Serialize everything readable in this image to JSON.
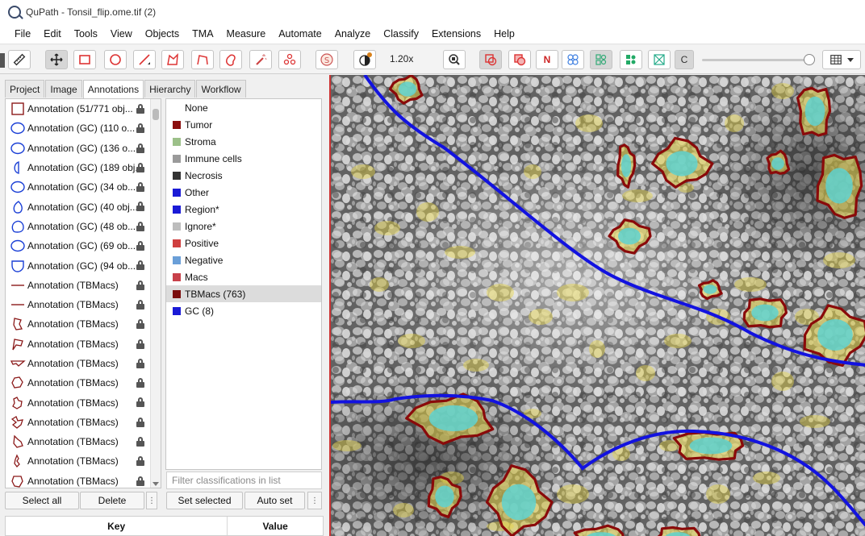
{
  "window": {
    "title": "QuPath - Tonsil_flip.ome.tif (2)"
  },
  "menu": [
    "File",
    "Edit",
    "Tools",
    "View",
    "Objects",
    "TMA",
    "Measure",
    "Automate",
    "Analyze",
    "Classify",
    "Extensions",
    "Help"
  ],
  "toolbar": {
    "zoom_label": "1.20x",
    "tools": [
      "measure-icon",
      "move-icon",
      "rectangle-icon",
      "ellipse-icon",
      "line-icon",
      "polygon-icon",
      "polyline-icon",
      "brush-icon",
      "wand-icon",
      "points-icon",
      "selection-mode-icon",
      "contrast-icon",
      "zoom-to-fit-icon",
      "show-annotations-icon",
      "fill-annotations-icon",
      "show-names-icon",
      "show-tma-icon",
      "show-detections-icon",
      "fill-detections-icon",
      "show-connections-icon",
      "pixel-classification-icon",
      "grid-icon"
    ],
    "n_label": "N",
    "c_label": "C",
    "opacity_slider": 1.0
  },
  "tabs": [
    "Project",
    "Image",
    "Annotations",
    "Hierarchy",
    "Workflow"
  ],
  "active_tab": "Annotations",
  "annotations": [
    {
      "label": "Annotation (51/771 obj...",
      "shape": "rect",
      "color": "#8b1a1a"
    },
    {
      "label": "Annotation (GC) (110 o...",
      "shape": "ellipse",
      "color": "#1a3fd6"
    },
    {
      "label": "Annotation (GC) (136 o...",
      "shape": "ellipse",
      "color": "#1a3fd6"
    },
    {
      "label": "Annotation (GC) (189 obj...",
      "shape": "half",
      "color": "#1a3fd6"
    },
    {
      "label": "Annotation (GC) (34 ob...",
      "shape": "ellipse",
      "color": "#1a3fd6"
    },
    {
      "label": "Annotation (GC) (40 obj...",
      "shape": "drop",
      "color": "#1a3fd6"
    },
    {
      "label": "Annotation (GC) (48 ob...",
      "shape": "blob",
      "color": "#1a3fd6"
    },
    {
      "label": "Annotation (GC) (69 ob...",
      "shape": "ellipse",
      "color": "#1a3fd6"
    },
    {
      "label": "Annotation (GC) (94 ob...",
      "shape": "shield",
      "color": "#1a3fd6"
    },
    {
      "label": "Annotation (TBMacs)",
      "shape": "line",
      "color": "#8b1a1a"
    },
    {
      "label": "Annotation (TBMacs)",
      "shape": "line",
      "color": "#8b1a1a"
    },
    {
      "label": "Annotation (TBMacs)",
      "shape": "poly1",
      "color": "#8b1a1a"
    },
    {
      "label": "Annotation (TBMacs)",
      "shape": "poly2",
      "color": "#8b1a1a"
    },
    {
      "label": "Annotation (TBMacs)",
      "shape": "poly3",
      "color": "#8b1a1a"
    },
    {
      "label": "Annotation (TBMacs)",
      "shape": "poly4",
      "color": "#8b1a1a"
    },
    {
      "label": "Annotation (TBMacs)",
      "shape": "poly5",
      "color": "#8b1a1a"
    },
    {
      "label": "Annotation (TBMacs)",
      "shape": "poly6",
      "color": "#8b1a1a"
    },
    {
      "label": "Annotation (TBMacs)",
      "shape": "poly7",
      "color": "#8b1a1a"
    },
    {
      "label": "Annotation (TBMacs)",
      "shape": "poly8",
      "color": "#8b1a1a"
    },
    {
      "label": "Annotation (TBMacs)",
      "shape": "poly9",
      "color": "#8b1a1a"
    }
  ],
  "classes": [
    {
      "label": "None",
      "color": ""
    },
    {
      "label": "Tumor",
      "color": "#8b0f0f"
    },
    {
      "label": "Stroma",
      "color": "#9cc089"
    },
    {
      "label": "Immune cells",
      "color": "#9a9a9a"
    },
    {
      "label": "Necrosis",
      "color": "#333333"
    },
    {
      "label": "Other",
      "color": "#1a1ad6"
    },
    {
      "label": "Region*",
      "color": "#1a1ad6"
    },
    {
      "label": "Ignore*",
      "color": "#bdbdbd"
    },
    {
      "label": "Positive",
      "color": "#cf3f3f"
    },
    {
      "label": "Negative",
      "color": "#6a9fd8"
    },
    {
      "label": "Macs",
      "color": "#c8414a"
    },
    {
      "label": "TBMacs (763)",
      "color": "#7a0c0c"
    },
    {
      "label": "GC (8)",
      "color": "#1a1ad6"
    }
  ],
  "selected_class": "TBMacs (763)",
  "filter": {
    "placeholder": "Filter classifications in list"
  },
  "buttons": {
    "select_all": "Select all",
    "delete": "Delete",
    "set_selected": "Set selected",
    "auto_set": "Auto set"
  },
  "table_header": {
    "key": "Key",
    "value": "Value"
  },
  "viewer": {
    "gc_color": "#1212e0",
    "tbmacs_color": "#8a0a0a",
    "cell_fill": "#5fd2d0",
    "signal_color": "#e8d64a"
  }
}
